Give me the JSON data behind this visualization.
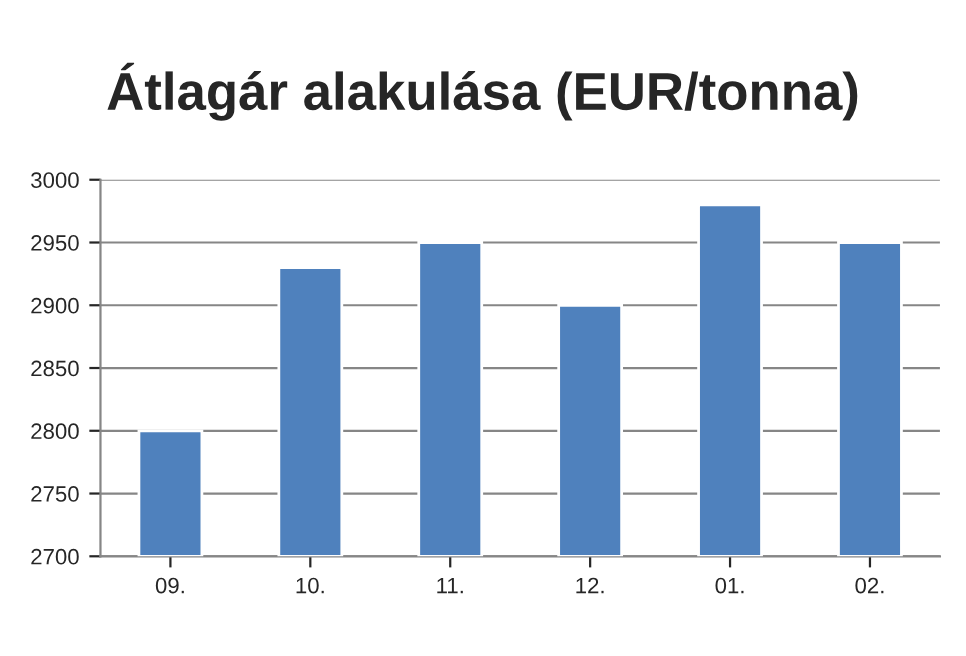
{
  "chart_data": {
    "type": "bar",
    "title": "Átlagár alakulása (EUR/tonna)",
    "categories": [
      "09.",
      "10.",
      "11.",
      "12.",
      "01.",
      "02."
    ],
    "series": [
      {
        "color": "#4f81bd",
        "values": [
          2800,
          2930,
          2950,
          2900,
          2980,
          2950
        ]
      }
    ],
    "ylim": [
      2700,
      3000
    ],
    "yticks": [
      2700,
      2750,
      2800,
      2850,
      2900,
      2950,
      3000
    ],
    "grid": "y",
    "legend": false
  }
}
